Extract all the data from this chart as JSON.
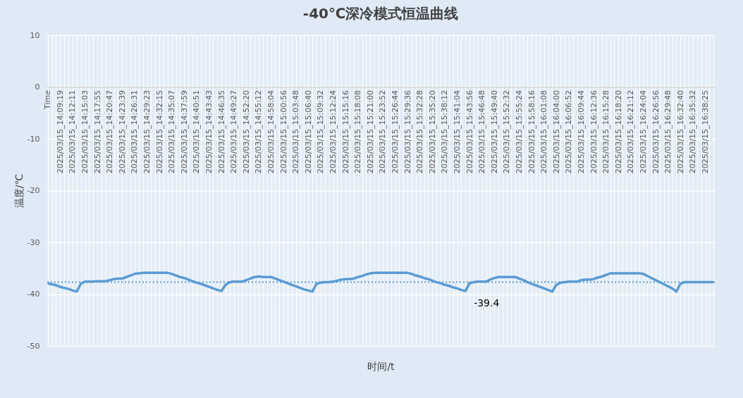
{
  "chart_data": {
    "type": "line",
    "title": "-40℃深冷模式恒温曲线",
    "xlabel": "时间/t",
    "ylabel": "温度/℃",
    "categories": [
      "Time",
      null,
      null,
      "2025/03/15_14:09:19",
      null,
      null,
      "2025/03/15_14:12:11",
      null,
      null,
      "2025/03/15_14:15:03",
      null,
      null,
      "2025/03/15_14:17:55",
      null,
      null,
      "2025/03/15_14:20:47",
      null,
      null,
      "2025/03/15_14:23:39",
      null,
      null,
      "2025/03/15_14:26:31",
      null,
      null,
      "2025/03/15_14:29:23",
      null,
      null,
      "2025/03/15_14:32:15",
      null,
      null,
      "2025/03/15_14:35:07",
      null,
      null,
      "2025/03/15_14:37:59",
      null,
      null,
      "2025/03/15_14:40:51",
      null,
      null,
      "2025/03/15_14:43:43",
      null,
      null,
      "2025/03/15_14:46:35",
      null,
      null,
      "2025/03/15_14:49:27",
      null,
      null,
      "2025/03/15_14:52:20",
      null,
      null,
      "2025/03/15_14:55:12",
      null,
      null,
      "2025/03/15_14:58:04",
      null,
      null,
      "2025/03/15_15:00:56",
      null,
      null,
      "2025/03/15_15:03:48",
      null,
      null,
      "2025/03/15_15:06:40",
      null,
      null,
      "2025/03/15_15:09:32",
      null,
      null,
      "2025/03/15_15:12:24",
      null,
      null,
      "2025/03/15_15:15:16",
      null,
      null,
      "2025/03/15_15:18:08",
      null,
      null,
      "2025/03/15_15:21:00",
      null,
      null,
      "2025/03/15_15:23:52",
      null,
      null,
      "2025/03/15_15:26:44",
      null,
      null,
      "2025/03/15_15:29:36",
      null,
      null,
      "2025/03/15_15:32:28",
      null,
      null,
      "2025/03/15_15:35:20",
      null,
      null,
      "2025/03/15_15:38:12",
      null,
      null,
      "2025/03/15_15:41:04",
      null,
      null,
      "2025/03/15_15:43:56",
      null,
      null,
      "2025/03/15_15:46:48",
      null,
      null,
      "2025/03/15_15:49:40",
      null,
      null,
      "2025/03/15_15:52:32",
      null,
      null,
      "2025/03/15_15:55:24",
      null,
      null,
      "2025/03/15_15:58:16",
      null,
      null,
      "2025/03/15_16:01:08",
      null,
      null,
      "2025/03/15_16:04:00",
      null,
      null,
      "2025/03/15_16:06:52",
      null,
      null,
      "2025/03/15_16:09:44",
      null,
      null,
      "2025/03/15_16:12:36",
      null,
      null,
      "2025/03/15_16:15:28",
      null,
      null,
      "2025/03/15_16:18:20",
      null,
      null,
      "2025/03/15_16:21:12",
      null,
      null,
      "2025/03/15_16:24:04",
      null,
      null,
      "2025/03/15_16:26:56",
      null,
      null,
      "2025/03/15_16:29:48",
      null,
      null,
      "2025/03/15_16:32:40",
      null,
      null,
      "2025/03/15_16:35:32",
      null,
      null,
      "2025/03/15_16:38:25",
      null,
      null
    ],
    "series": [
      {
        "color": "#5b9bd5",
        "values": [
          -37.9,
          -38.1,
          -38.3,
          -38.6,
          -38.8,
          -39.0,
          -39.3,
          -39.5,
          -38.0,
          -37.6,
          -37.6,
          -37.6,
          -37.5,
          -37.5,
          -37.5,
          -37.3,
          -37.1,
          -37.0,
          -37.0,
          -36.7,
          -36.4,
          -36.1,
          -36.0,
          -35.9,
          -35.9,
          -35.9,
          -35.9,
          -35.9,
          -35.9,
          -35.9,
          -36.1,
          -36.4,
          -36.7,
          -36.9,
          -37.2,
          -37.5,
          -37.8,
          -38.0,
          -38.3,
          -38.6,
          -38.9,
          -39.2,
          -39.4,
          -38.2,
          -37.7,
          -37.6,
          -37.6,
          -37.6,
          -37.3,
          -37.0,
          -36.7,
          -36.6,
          -36.7,
          -36.7,
          -36.7,
          -37.0,
          -37.3,
          -37.6,
          -37.9,
          -38.2,
          -38.5,
          -38.8,
          -39.1,
          -39.3,
          -39.5,
          -38.0,
          -37.8,
          -37.7,
          -37.7,
          -37.6,
          -37.4,
          -37.2,
          -37.1,
          -37.1,
          -37.0,
          -36.7,
          -36.5,
          -36.2,
          -36.0,
          -35.9,
          -35.9,
          -35.9,
          -35.9,
          -35.9,
          -35.9,
          -35.9,
          -35.9,
          -35.9,
          -36.1,
          -36.4,
          -36.6,
          -36.9,
          -37.1,
          -37.4,
          -37.7,
          -37.9,
          -38.2,
          -38.4,
          -38.7,
          -38.9,
          -39.2,
          -39.4,
          -37.9,
          -37.7,
          -37.6,
          -37.6,
          -37.6,
          -37.2,
          -36.9,
          -36.7,
          -36.7,
          -36.7,
          -36.7,
          -36.7,
          -37.0,
          -37.3,
          -37.7,
          -38.0,
          -38.3,
          -38.6,
          -38.9,
          -39.2,
          -39.5,
          -38.2,
          -37.8,
          -37.7,
          -37.6,
          -37.6,
          -37.6,
          -37.3,
          -37.2,
          -37.2,
          -37.1,
          -36.8,
          -36.6,
          -36.3,
          -36.0,
          -36.0,
          -36.0,
          -36.0,
          -36.0,
          -36.0,
          -36.0,
          -36.0,
          -36.1,
          -36.5,
          -36.9,
          -37.3,
          -37.7,
          -38.1,
          -38.5,
          -38.9,
          -39.5,
          -38.0,
          -37.7,
          -37.7,
          -37.7,
          -37.7,
          -37.7,
          -37.7,
          -37.7,
          -37.7
        ],
        "value_labels": [
          null,
          null,
          null,
          null,
          null,
          null,
          null,
          null,
          null,
          null,
          null,
          null,
          null,
          null,
          null,
          null,
          null,
          null,
          null,
          null,
          null,
          null,
          null,
          null,
          null,
          null,
          null,
          null,
          null,
          null,
          null,
          null,
          null,
          null,
          null,
          null,
          null,
          null,
          null,
          null,
          null,
          null,
          null,
          null,
          null,
          null,
          null,
          null,
          null,
          null,
          null,
          null,
          null,
          null,
          null,
          null,
          null,
          null,
          null,
          null,
          null,
          null,
          null,
          null,
          null,
          null,
          null,
          null,
          null,
          null,
          null,
          null,
          null,
          null,
          null,
          null,
          null,
          null,
          null,
          null,
          null,
          null,
          null,
          null,
          null,
          null,
          null,
          null,
          null,
          null,
          null,
          null,
          null,
          null,
          null,
          null,
          null,
          null,
          null,
          null,
          null,
          "-39.4",
          null,
          null,
          null,
          null,
          null,
          null,
          null,
          null,
          null,
          null,
          null,
          null,
          null,
          null,
          null,
          null,
          null,
          null,
          null,
          null,
          null,
          null,
          null,
          null,
          null,
          null,
          null,
          null,
          null,
          null,
          null,
          null,
          null,
          null,
          null,
          null,
          null,
          null,
          null,
          null,
          null,
          null,
          null,
          null,
          null,
          null,
          null,
          null,
          null,
          null,
          null,
          null,
          null,
          null,
          null,
          null,
          null,
          null,
          null,
          null
        ]
      }
    ],
    "ref_lines": [
      {
        "axis": "y",
        "value": -37.7,
        "color": "#5b9bd5",
        "line_style": "dotted"
      }
    ],
    "ylim": [
      -50,
      10
    ],
    "yticks": [
      -50,
      -40,
      -30,
      -20,
      -10,
      0,
      10
    ],
    "grid": true
  }
}
